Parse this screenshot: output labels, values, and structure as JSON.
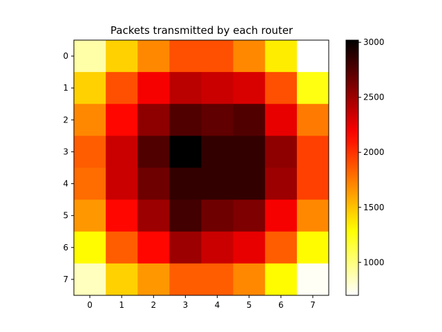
{
  "chart_data": {
    "type": "heatmap",
    "title": "Packets transmitted by each router",
    "xlabel": "",
    "ylabel": "",
    "x_ticks": [
      "0",
      "1",
      "2",
      "3",
      "4",
      "5",
      "6",
      "7"
    ],
    "y_ticks": [
      "0",
      "1",
      "2",
      "3",
      "4",
      "5",
      "6",
      "7"
    ],
    "colormap": "hot_r",
    "vmin": 700,
    "vmax": 3020,
    "colorbar_ticks": [
      1000,
      1500,
      2000,
      2500,
      3000
    ],
    "colorbar_tick_labels": [
      "1000",
      "1500",
      "2000",
      "2500",
      "3000"
    ],
    "values": [
      [
        900,
        1450,
        1700,
        1900,
        1900,
        1700,
        1350,
        700
      ],
      [
        1450,
        1900,
        2200,
        2400,
        2350,
        2300,
        1900,
        1250
      ],
      [
        1700,
        2150,
        2550,
        2750,
        2700,
        2750,
        2250,
        1750
      ],
      [
        1850,
        2350,
        2750,
        3020,
        2850,
        2850,
        2550,
        1950
      ],
      [
        1800,
        2350,
        2650,
        2850,
        2850,
        2850,
        2500,
        1950
      ],
      [
        1650,
        2150,
        2500,
        2800,
        2650,
        2600,
        2200,
        1700
      ],
      [
        1300,
        1850,
        2150,
        2500,
        2350,
        2250,
        1850,
        1300
      ],
      [
        850,
        1450,
        1650,
        1850,
        1850,
        1700,
        1300,
        720
      ]
    ],
    "grid": false,
    "legend": "colorbar-right"
  }
}
